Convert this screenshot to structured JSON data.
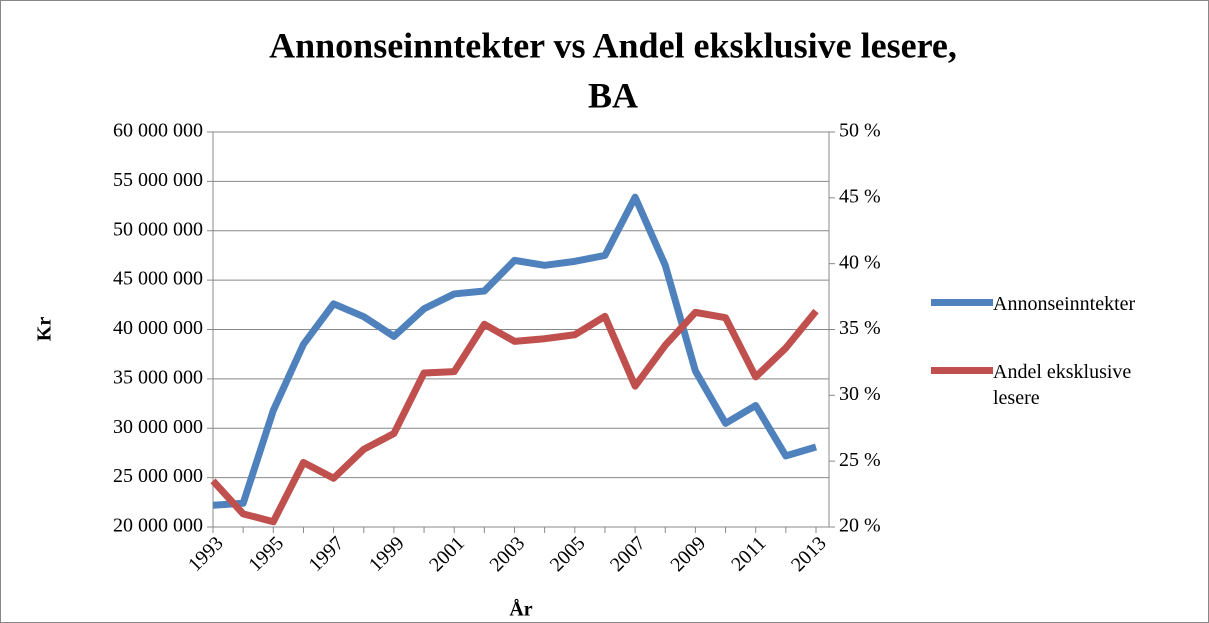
{
  "chart_data": {
    "type": "line",
    "title": [
      "Annonseinntekter vs Andel eksklusive lesere,",
      "BA"
    ],
    "ylabel": "Kr",
    "xlabel": "År",
    "categories": [
      "1993",
      null,
      "1995",
      null,
      "1997",
      null,
      "1999",
      null,
      "2001",
      null,
      "2003",
      null,
      "2005",
      null,
      "2007",
      null,
      "2009",
      null,
      "2011",
      null,
      "2013"
    ],
    "series": [
      {
        "name": "Annonseinntekter",
        "color": "#4f81bd",
        "axis": "y",
        "values": [
          22200000,
          22400000,
          31800000,
          38500000,
          42600000,
          41300000,
          39300000,
          42100000,
          43600000,
          43900000,
          47000000,
          46500000,
          46900000,
          47500000,
          53400000,
          46500000,
          35800000,
          30500000,
          32300000,
          27200000,
          28100000
        ]
      },
      {
        "name": "Andel eksklusive lesere",
        "color": "#c0504d",
        "axis": "y2",
        "values": [
          23.5,
          21.0,
          20.4,
          24.9,
          23.7,
          25.9,
          27.1,
          31.7,
          31.8,
          35.4,
          34.1,
          34.3,
          34.6,
          36.0,
          30.7,
          33.8,
          36.3,
          35.9,
          31.4,
          33.6,
          36.4
        ]
      }
    ],
    "ylim": [
      20000000,
      60000000
    ],
    "yticks": [
      {
        "value": 20000000,
        "label": "20 000 000"
      },
      {
        "value": 25000000,
        "label": "25 000 000"
      },
      {
        "value": 30000000,
        "label": "30 000 000"
      },
      {
        "value": 35000000,
        "label": "35 000 000"
      },
      {
        "value": 40000000,
        "label": "40 000 000"
      },
      {
        "value": 45000000,
        "label": "45 000 000"
      },
      {
        "value": 50000000,
        "label": "50 000 000"
      },
      {
        "value": 55000000,
        "label": "55 000 000"
      },
      {
        "value": 60000000,
        "label": "60 000 000"
      }
    ],
    "y2lim": [
      20,
      50
    ],
    "y2ticks": [
      {
        "value": 20,
        "label": "20 %"
      },
      {
        "value": 25,
        "label": "25 %"
      },
      {
        "value": 30,
        "label": "30 %"
      },
      {
        "value": 35,
        "label": "35 %"
      },
      {
        "value": 40,
        "label": "40 %"
      },
      {
        "value": 45,
        "label": "45 %"
      },
      {
        "value": 50,
        "label": "50 %"
      }
    ],
    "grid": true,
    "legend": "right"
  }
}
